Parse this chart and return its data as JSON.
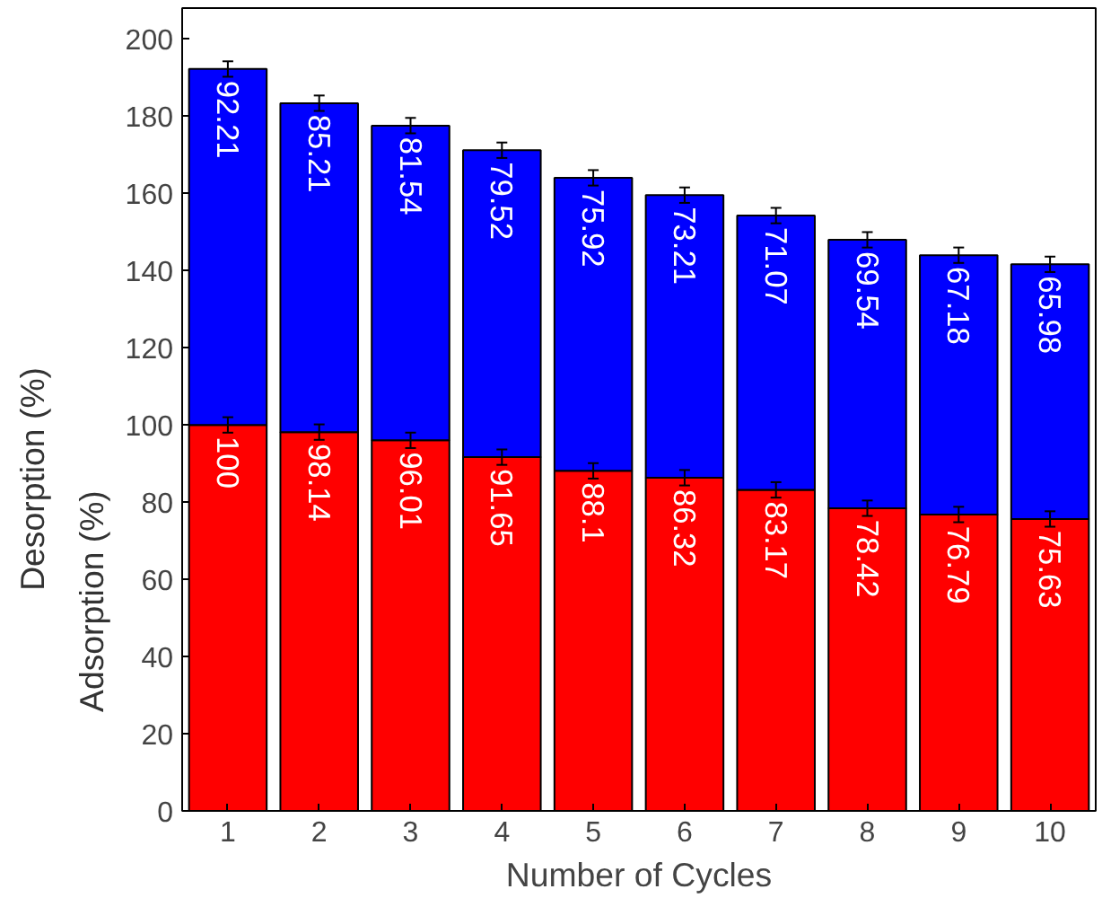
{
  "chart_data": {
    "type": "bar",
    "stacked": true,
    "xlabel": "Number of Cycles",
    "ylabel": "Adsorption (%)",
    "annotations": [
      "Desorption (%)"
    ],
    "categories": [
      "1",
      "2",
      "3",
      "4",
      "5",
      "6",
      "7",
      "8",
      "9",
      "10"
    ],
    "series": [
      {
        "color": "#ff0000",
        "values": [
          100,
          98.14,
          96.01,
          91.65,
          88.1,
          86.32,
          83.17,
          78.42,
          76.79,
          75.63
        ],
        "errors": [
          2,
          2,
          2,
          2,
          2,
          2,
          2,
          2,
          2,
          2
        ]
      },
      {
        "color": "#0000ff",
        "values": [
          92.21,
          85.21,
          81.54,
          79.52,
          75.92,
          73.21,
          71.07,
          69.54,
          67.18,
          65.98
        ],
        "errors": [
          2,
          2,
          2,
          2,
          2,
          2,
          2,
          2,
          2,
          2
        ]
      }
    ],
    "data_labels": true,
    "ylim": [
      0,
      208
    ],
    "yticks": [
      0,
      20,
      40,
      60,
      80,
      100,
      120,
      140,
      160,
      180,
      200
    ],
    "grid": false
  }
}
